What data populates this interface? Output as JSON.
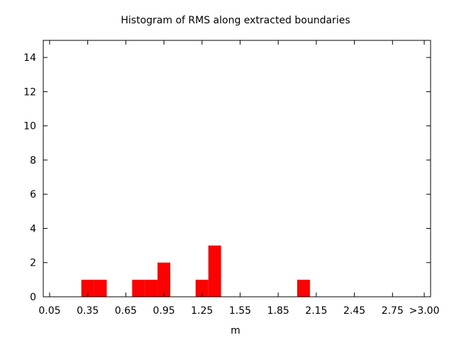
{
  "chart_data": {
    "type": "bar",
    "title": "Histogram of RMS along extracted boundaries",
    "xlabel": "m",
    "ylabel": "",
    "ylim": [
      0,
      15
    ],
    "yticks": [
      0,
      2,
      4,
      6,
      8,
      10,
      12,
      14
    ],
    "xlim": [
      0.0,
      3.05
    ],
    "xtick_values": [
      0.05,
      0.35,
      0.65,
      0.95,
      1.25,
      1.55,
      1.85,
      2.15,
      2.45,
      2.75,
      3.0
    ],
    "xtick_labels": [
      "0.05",
      "0.35",
      "0.65",
      "0.95",
      "1.25",
      "1.55",
      "1.85",
      "2.15",
      "2.45",
      "2.75",
      ">3.00"
    ],
    "bin_width": 0.1,
    "bins": [
      {
        "center": 0.35,
        "value": 1
      },
      {
        "center": 0.45,
        "value": 1
      },
      {
        "center": 0.75,
        "value": 1
      },
      {
        "center": 0.85,
        "value": 1
      },
      {
        "center": 0.95,
        "value": 2
      },
      {
        "center": 1.25,
        "value": 1
      },
      {
        "center": 1.35,
        "value": 3
      },
      {
        "center": 2.05,
        "value": 1
      }
    ],
    "bar_color": "#ff0000",
    "grid": false,
    "legend": "none"
  }
}
